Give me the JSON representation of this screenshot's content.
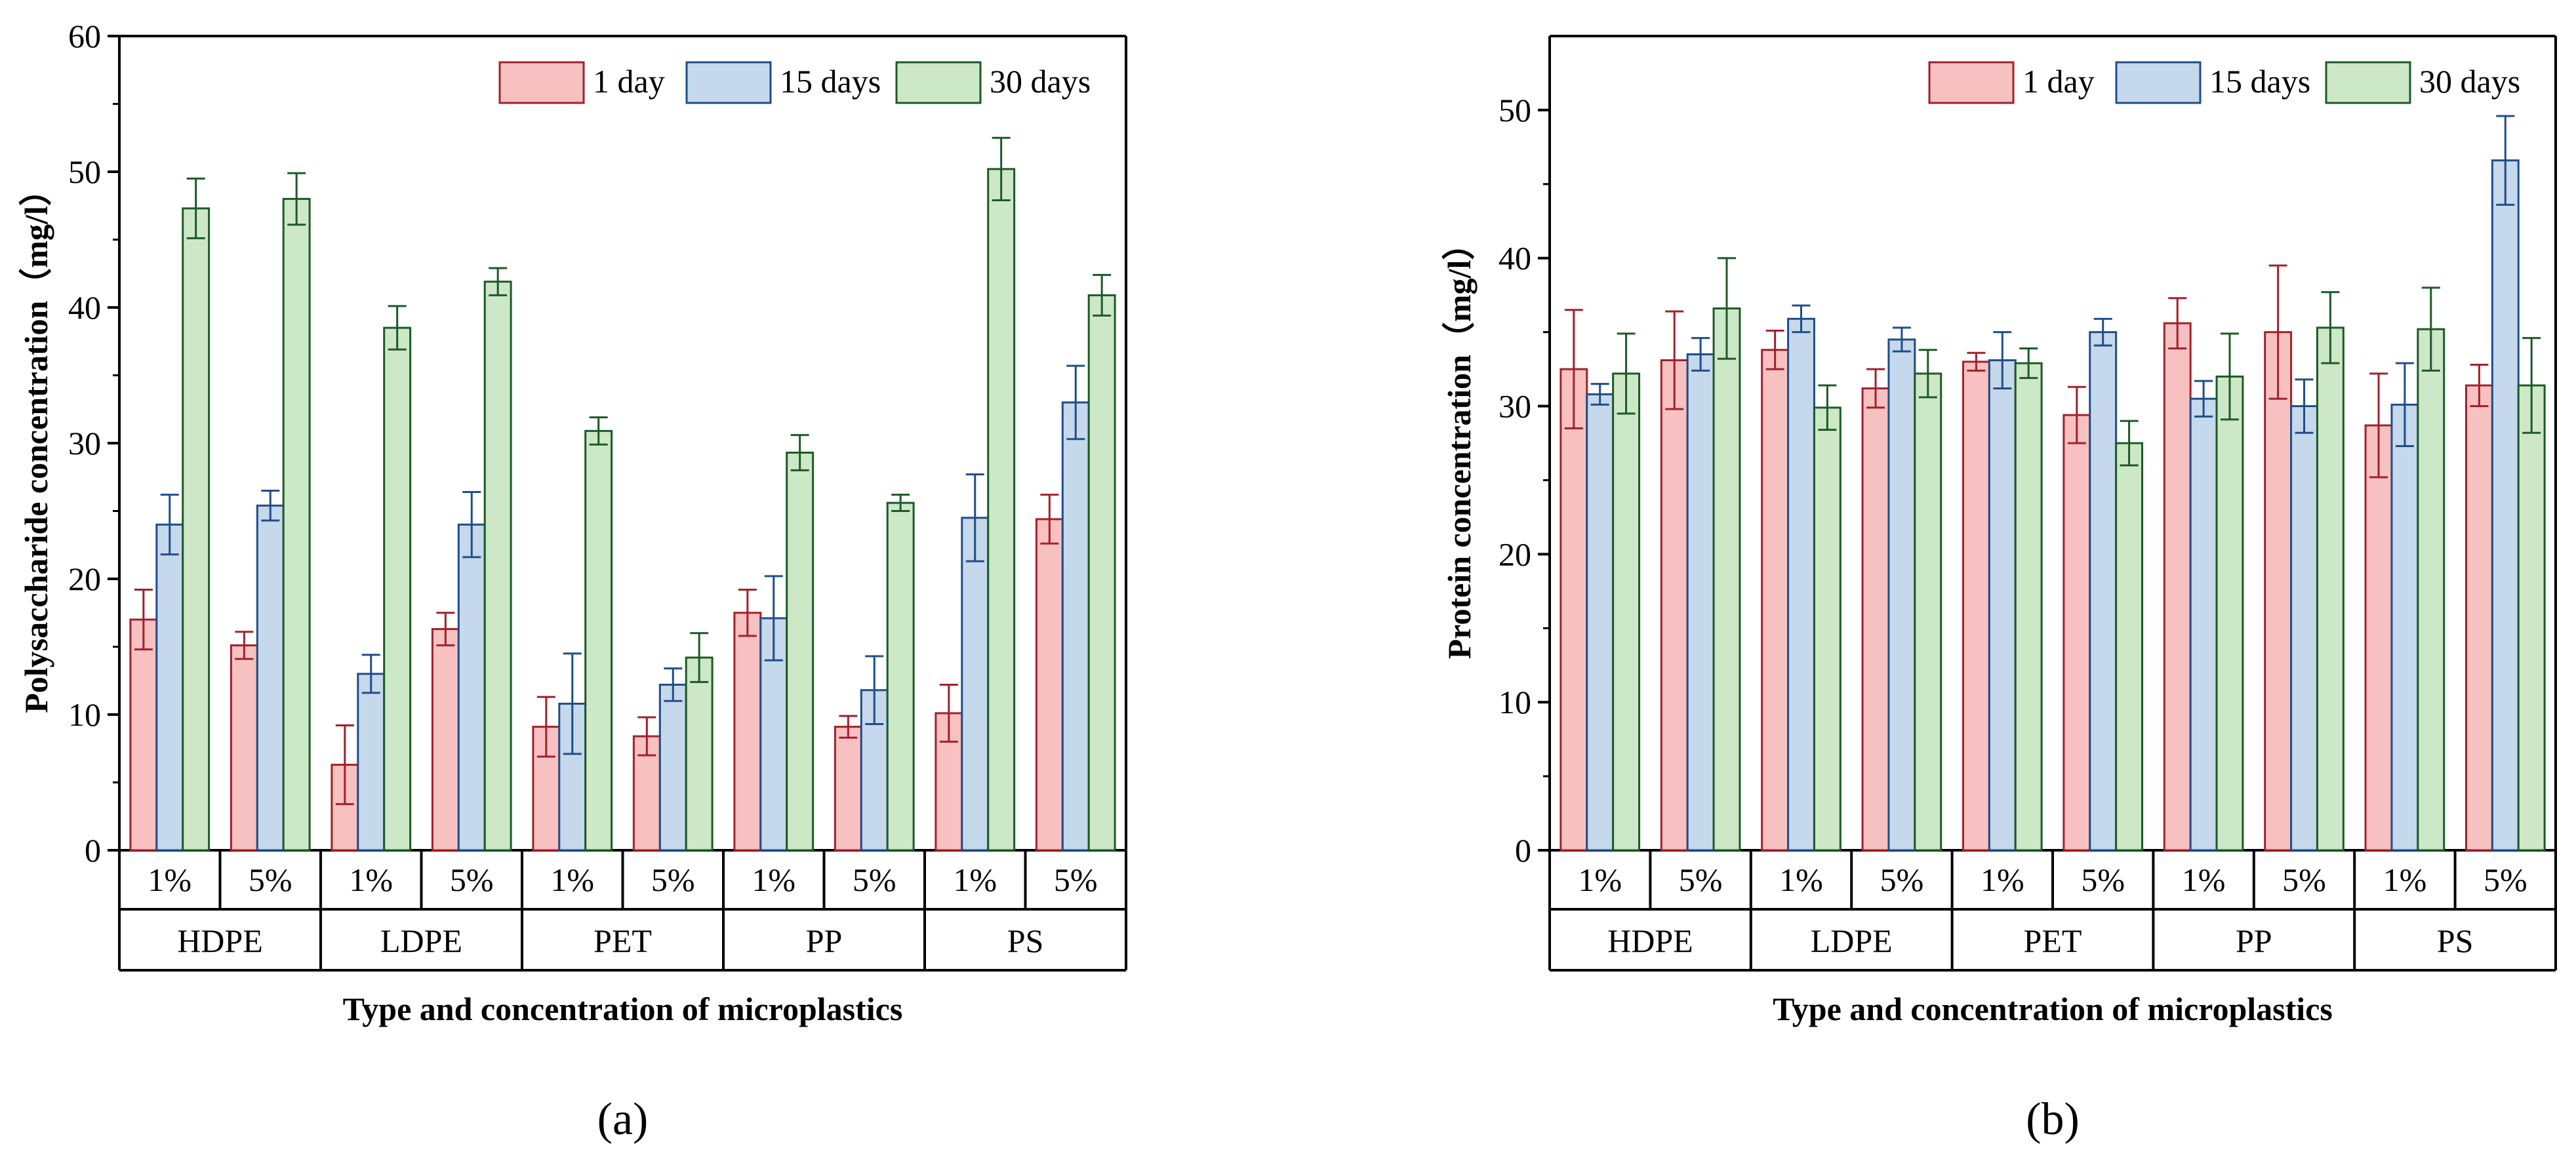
{
  "chart_data": [
    {
      "type": "bar",
      "panel_label": "(a)",
      "ylabel": "Polysaccharide concentration（mg/l）",
      "xlabel": "Type and concentration of microplastics",
      "ylim": [
        0,
        60
      ],
      "yticks": [
        "0",
        "10",
        "20",
        "30",
        "40",
        "50",
        "60"
      ],
      "groups": [
        "HDPE",
        "LDPE",
        "PET",
        "PP",
        "PS"
      ],
      "categories": [
        "1%",
        "5%",
        "1%",
        "5%",
        "1%",
        "5%",
        "1%",
        "5%",
        "1%",
        "5%"
      ],
      "legend_position": "top-right",
      "series": [
        {
          "name": "1 day",
          "fill": "#f7c1c1",
          "stroke": "#a3202a",
          "values": [
            17.0,
            15.1,
            6.3,
            16.3,
            9.1,
            8.4,
            17.5,
            9.1,
            10.1,
            24.4
          ],
          "errors": [
            2.2,
            1.0,
            2.9,
            1.2,
            2.2,
            1.4,
            1.7,
            0.8,
            2.1,
            1.8
          ]
        },
        {
          "name": "15 days",
          "fill": "#c5d8ec",
          "stroke": "#1f4e86",
          "values": [
            24.0,
            25.4,
            13.0,
            24.0,
            10.8,
            12.2,
            17.1,
            11.8,
            24.5,
            33.0
          ],
          "errors": [
            2.2,
            1.1,
            1.4,
            2.4,
            3.7,
            1.2,
            3.1,
            2.5,
            3.2,
            2.7
          ]
        },
        {
          "name": "30 days",
          "fill": "#cde8c7",
          "stroke": "#1c5a26",
          "values": [
            47.3,
            48.0,
            38.5,
            41.9,
            30.9,
            14.2,
            29.3,
            25.6,
            50.2,
            40.9
          ],
          "errors": [
            2.2,
            1.9,
            1.6,
            1.0,
            1.0,
            1.8,
            1.3,
            0.6,
            2.3,
            1.5
          ]
        }
      ]
    },
    {
      "type": "bar",
      "panel_label": "(b)",
      "ylabel": "Protein concentration（mg/l）",
      "xlabel": "Type and concentration of microplastics",
      "ylim": [
        0,
        55
      ],
      "yticks": [
        "0",
        "10",
        "20",
        "30",
        "40",
        "50"
      ],
      "groups": [
        "HDPE",
        "LDPE",
        "PET",
        "PP",
        "PS"
      ],
      "categories": [
        "1%",
        "5%",
        "1%",
        "5%",
        "1%",
        "5%",
        "1%",
        "5%",
        "1%",
        "5%"
      ],
      "legend_position": "top-right",
      "series": [
        {
          "name": "1 day",
          "fill": "#f7c1c1",
          "stroke": "#a3202a",
          "values": [
            32.5,
            33.1,
            33.8,
            31.2,
            33.0,
            29.4,
            35.6,
            35.0,
            28.7,
            31.4
          ],
          "errors": [
            4.0,
            3.3,
            1.3,
            1.3,
            0.6,
            1.9,
            1.7,
            4.5,
            3.5,
            1.4
          ]
        },
        {
          "name": "15 days",
          "fill": "#c5d8ec",
          "stroke": "#1f4e86",
          "values": [
            30.8,
            33.5,
            35.9,
            34.5,
            33.1,
            35.0,
            30.5,
            30.0,
            30.1,
            46.6
          ],
          "errors": [
            0.7,
            1.1,
            0.9,
            0.8,
            1.9,
            0.9,
            1.2,
            1.8,
            2.8,
            3.0
          ]
        },
        {
          "name": "30 days",
          "fill": "#cde8c7",
          "stroke": "#1c5a26",
          "values": [
            32.2,
            36.6,
            29.9,
            32.2,
            32.9,
            27.5,
            32.0,
            35.3,
            35.2,
            31.4
          ],
          "errors": [
            2.7,
            3.4,
            1.5,
            1.6,
            1.0,
            1.5,
            2.9,
            2.4,
            2.8,
            3.2
          ]
        }
      ]
    }
  ]
}
